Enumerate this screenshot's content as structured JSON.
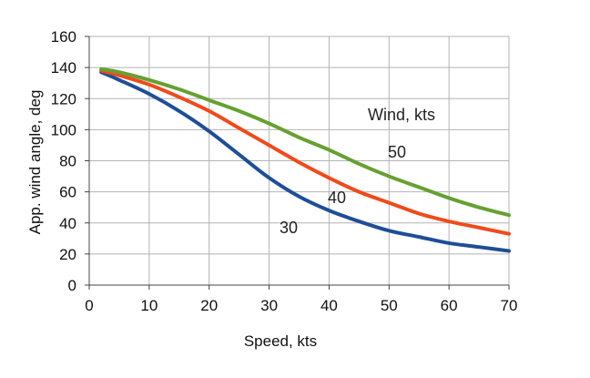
{
  "chart_data": {
    "type": "line",
    "title": "",
    "xlabel": "Speed, kts",
    "ylabel": "App. wind angle, deg",
    "xlim": [
      0,
      70
    ],
    "ylim": [
      0,
      160
    ],
    "x_ticks": [
      0,
      10,
      20,
      30,
      40,
      50,
      60,
      70
    ],
    "y_ticks": [
      0,
      20,
      40,
      60,
      80,
      100,
      120,
      140,
      160
    ],
    "grid": {
      "x": true,
      "y": true
    },
    "legend_title": "Wind, kts",
    "series": [
      {
        "name": "30",
        "color": "#1f4e96",
        "x": [
          2,
          5,
          10,
          15,
          20,
          25,
          30,
          35,
          40,
          45,
          50,
          55,
          60,
          65,
          70
        ],
        "y": [
          137,
          132,
          123,
          112,
          99,
          84,
          69,
          57,
          48,
          41,
          35,
          31,
          27,
          24.5,
          22
        ]
      },
      {
        "name": "40",
        "color": "#ee4b1d",
        "x": [
          2,
          5,
          10,
          15,
          20,
          25,
          30,
          35,
          40,
          45,
          50,
          55,
          60,
          65,
          70
        ],
        "y": [
          138,
          135,
          129,
          121,
          112,
          101,
          90,
          79,
          69,
          60,
          53,
          46,
          41,
          37,
          33
        ]
      },
      {
        "name": "50",
        "color": "#66a032",
        "x": [
          2,
          5,
          10,
          15,
          20,
          25,
          30,
          35,
          40,
          45,
          50,
          55,
          60,
          65,
          70
        ],
        "y": [
          139,
          137,
          132,
          126,
          119,
          112,
          104,
          95,
          87,
          78,
          70,
          63,
          56,
          50,
          45
        ]
      }
    ],
    "annotations": [
      "Wind, kts",
      "50",
      "40",
      "30"
    ]
  }
}
